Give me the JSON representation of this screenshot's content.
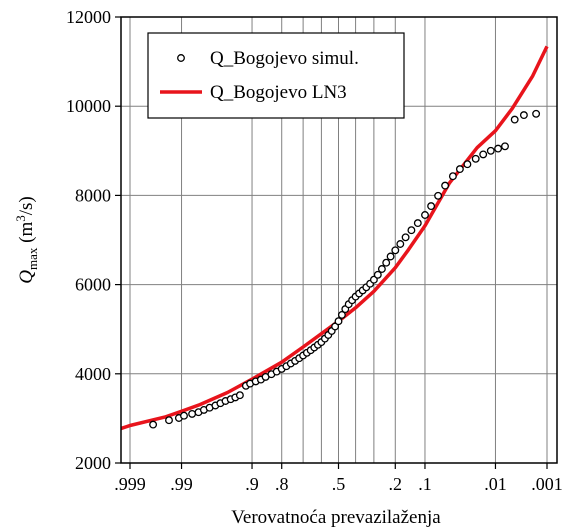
{
  "chart_data": {
    "type": "scatter",
    "xlabel": "Verovatnoća prevazilaženja",
    "ylabel": {
      "main": "Q",
      "sub": "max",
      "unit_pre": " (m",
      "unit_sup": "3",
      "unit_post": "/s)"
    },
    "x_scale": "normal-probability",
    "xlim": [
      0.999,
      0.001
    ],
    "ylim": [
      2000,
      12000
    ],
    "x_ticks": [
      {
        "value": 0.999,
        "label": ".999"
      },
      {
        "value": 0.99,
        "label": ".99"
      },
      {
        "value": 0.9,
        "label": ".9"
      },
      {
        "value": 0.8,
        "label": ".8"
      },
      {
        "value": 0.5,
        "label": ".5"
      },
      {
        "value": 0.2,
        "label": ".2"
      },
      {
        "value": 0.1,
        "label": ".1"
      },
      {
        "value": 0.01,
        "label": ".01"
      },
      {
        "value": 0.001,
        "label": ".001"
      }
    ],
    "x_gridlines": [
      0.999,
      0.99,
      0.9,
      0.8,
      0.7,
      0.6,
      0.5,
      0.4,
      0.3,
      0.2,
      0.1,
      0.01,
      0.001
    ],
    "y_ticks": [
      2000,
      4000,
      6000,
      8000,
      10000,
      12000
    ],
    "grid": true,
    "legend_position": "top-left",
    "series": [
      {
        "name": "Q_Bogojevo simul.",
        "kind": "scatter",
        "color": "#000000",
        "points": [
          [
            0.997,
            2860
          ],
          [
            0.994,
            2960
          ],
          [
            0.991,
            3010
          ],
          [
            0.989,
            3060
          ],
          [
            0.985,
            3100
          ],
          [
            0.981,
            3140
          ],
          [
            0.977,
            3190
          ],
          [
            0.972,
            3240
          ],
          [
            0.966,
            3290
          ],
          [
            0.96,
            3340
          ],
          [
            0.953,
            3390
          ],
          [
            0.945,
            3430
          ],
          [
            0.937,
            3470
          ],
          [
            0.928,
            3520
          ],
          [
            0.915,
            3730
          ],
          [
            0.905,
            3780
          ],
          [
            0.89,
            3830
          ],
          [
            0.875,
            3870
          ],
          [
            0.86,
            3930
          ],
          [
            0.84,
            3990
          ],
          [
            0.82,
            4050
          ],
          [
            0.8,
            4110
          ],
          [
            0.78,
            4170
          ],
          [
            0.76,
            4230
          ],
          [
            0.74,
            4290
          ],
          [
            0.72,
            4350
          ],
          [
            0.7,
            4410
          ],
          [
            0.68,
            4470
          ],
          [
            0.66,
            4530
          ],
          [
            0.64,
            4590
          ],
          [
            0.62,
            4650
          ],
          [
            0.6,
            4710
          ],
          [
            0.58,
            4790
          ],
          [
            0.56,
            4870
          ],
          [
            0.54,
            4960
          ],
          [
            0.52,
            5060
          ],
          [
            0.5,
            5180
          ],
          [
            0.48,
            5320
          ],
          [
            0.46,
            5450
          ],
          [
            0.44,
            5560
          ],
          [
            0.42,
            5650
          ],
          [
            0.4,
            5730
          ],
          [
            0.38,
            5800
          ],
          [
            0.36,
            5870
          ],
          [
            0.34,
            5940
          ],
          [
            0.32,
            6020
          ],
          [
            0.3,
            6110
          ],
          [
            0.28,
            6220
          ],
          [
            0.26,
            6350
          ],
          [
            0.24,
            6490
          ],
          [
            0.22,
            6630
          ],
          [
            0.2,
            6770
          ],
          [
            0.18,
            6910
          ],
          [
            0.16,
            7060
          ],
          [
            0.14,
            7220
          ],
          [
            0.12,
            7380
          ],
          [
            0.1,
            7560
          ],
          [
            0.085,
            7760
          ],
          [
            0.07,
            7990
          ],
          [
            0.057,
            8220
          ],
          [
            0.045,
            8430
          ],
          [
            0.036,
            8590
          ],
          [
            0.028,
            8700
          ],
          [
            0.021,
            8820
          ],
          [
            0.016,
            8920
          ],
          [
            0.012,
            9000
          ],
          [
            0.009,
            9050
          ],
          [
            0.0068,
            9100
          ],
          [
            0.0045,
            9700
          ],
          [
            0.003,
            9800
          ],
          [
            0.0017,
            9830
          ]
        ]
      },
      {
        "name": "Q_Bogojevo LN3",
        "kind": "line",
        "color": "#e8141c",
        "points": [
          [
            0.9995,
            2740
          ],
          [
            0.999,
            2840
          ],
          [
            0.995,
            3030
          ],
          [
            0.99,
            3160
          ],
          [
            0.98,
            3310
          ],
          [
            0.95,
            3580
          ],
          [
            0.9,
            3880
          ],
          [
            0.8,
            4260
          ],
          [
            0.7,
            4600
          ],
          [
            0.6,
            4900
          ],
          [
            0.5,
            5180
          ],
          [
            0.4,
            5480
          ],
          [
            0.3,
            5850
          ],
          [
            0.2,
            6380
          ],
          [
            0.15,
            6780
          ],
          [
            0.1,
            7320
          ],
          [
            0.05,
            8280
          ],
          [
            0.02,
            9070
          ],
          [
            0.01,
            9450
          ],
          [
            0.005,
            9950
          ],
          [
            0.002,
            10680
          ],
          [
            0.001,
            11340
          ]
        ]
      }
    ]
  }
}
